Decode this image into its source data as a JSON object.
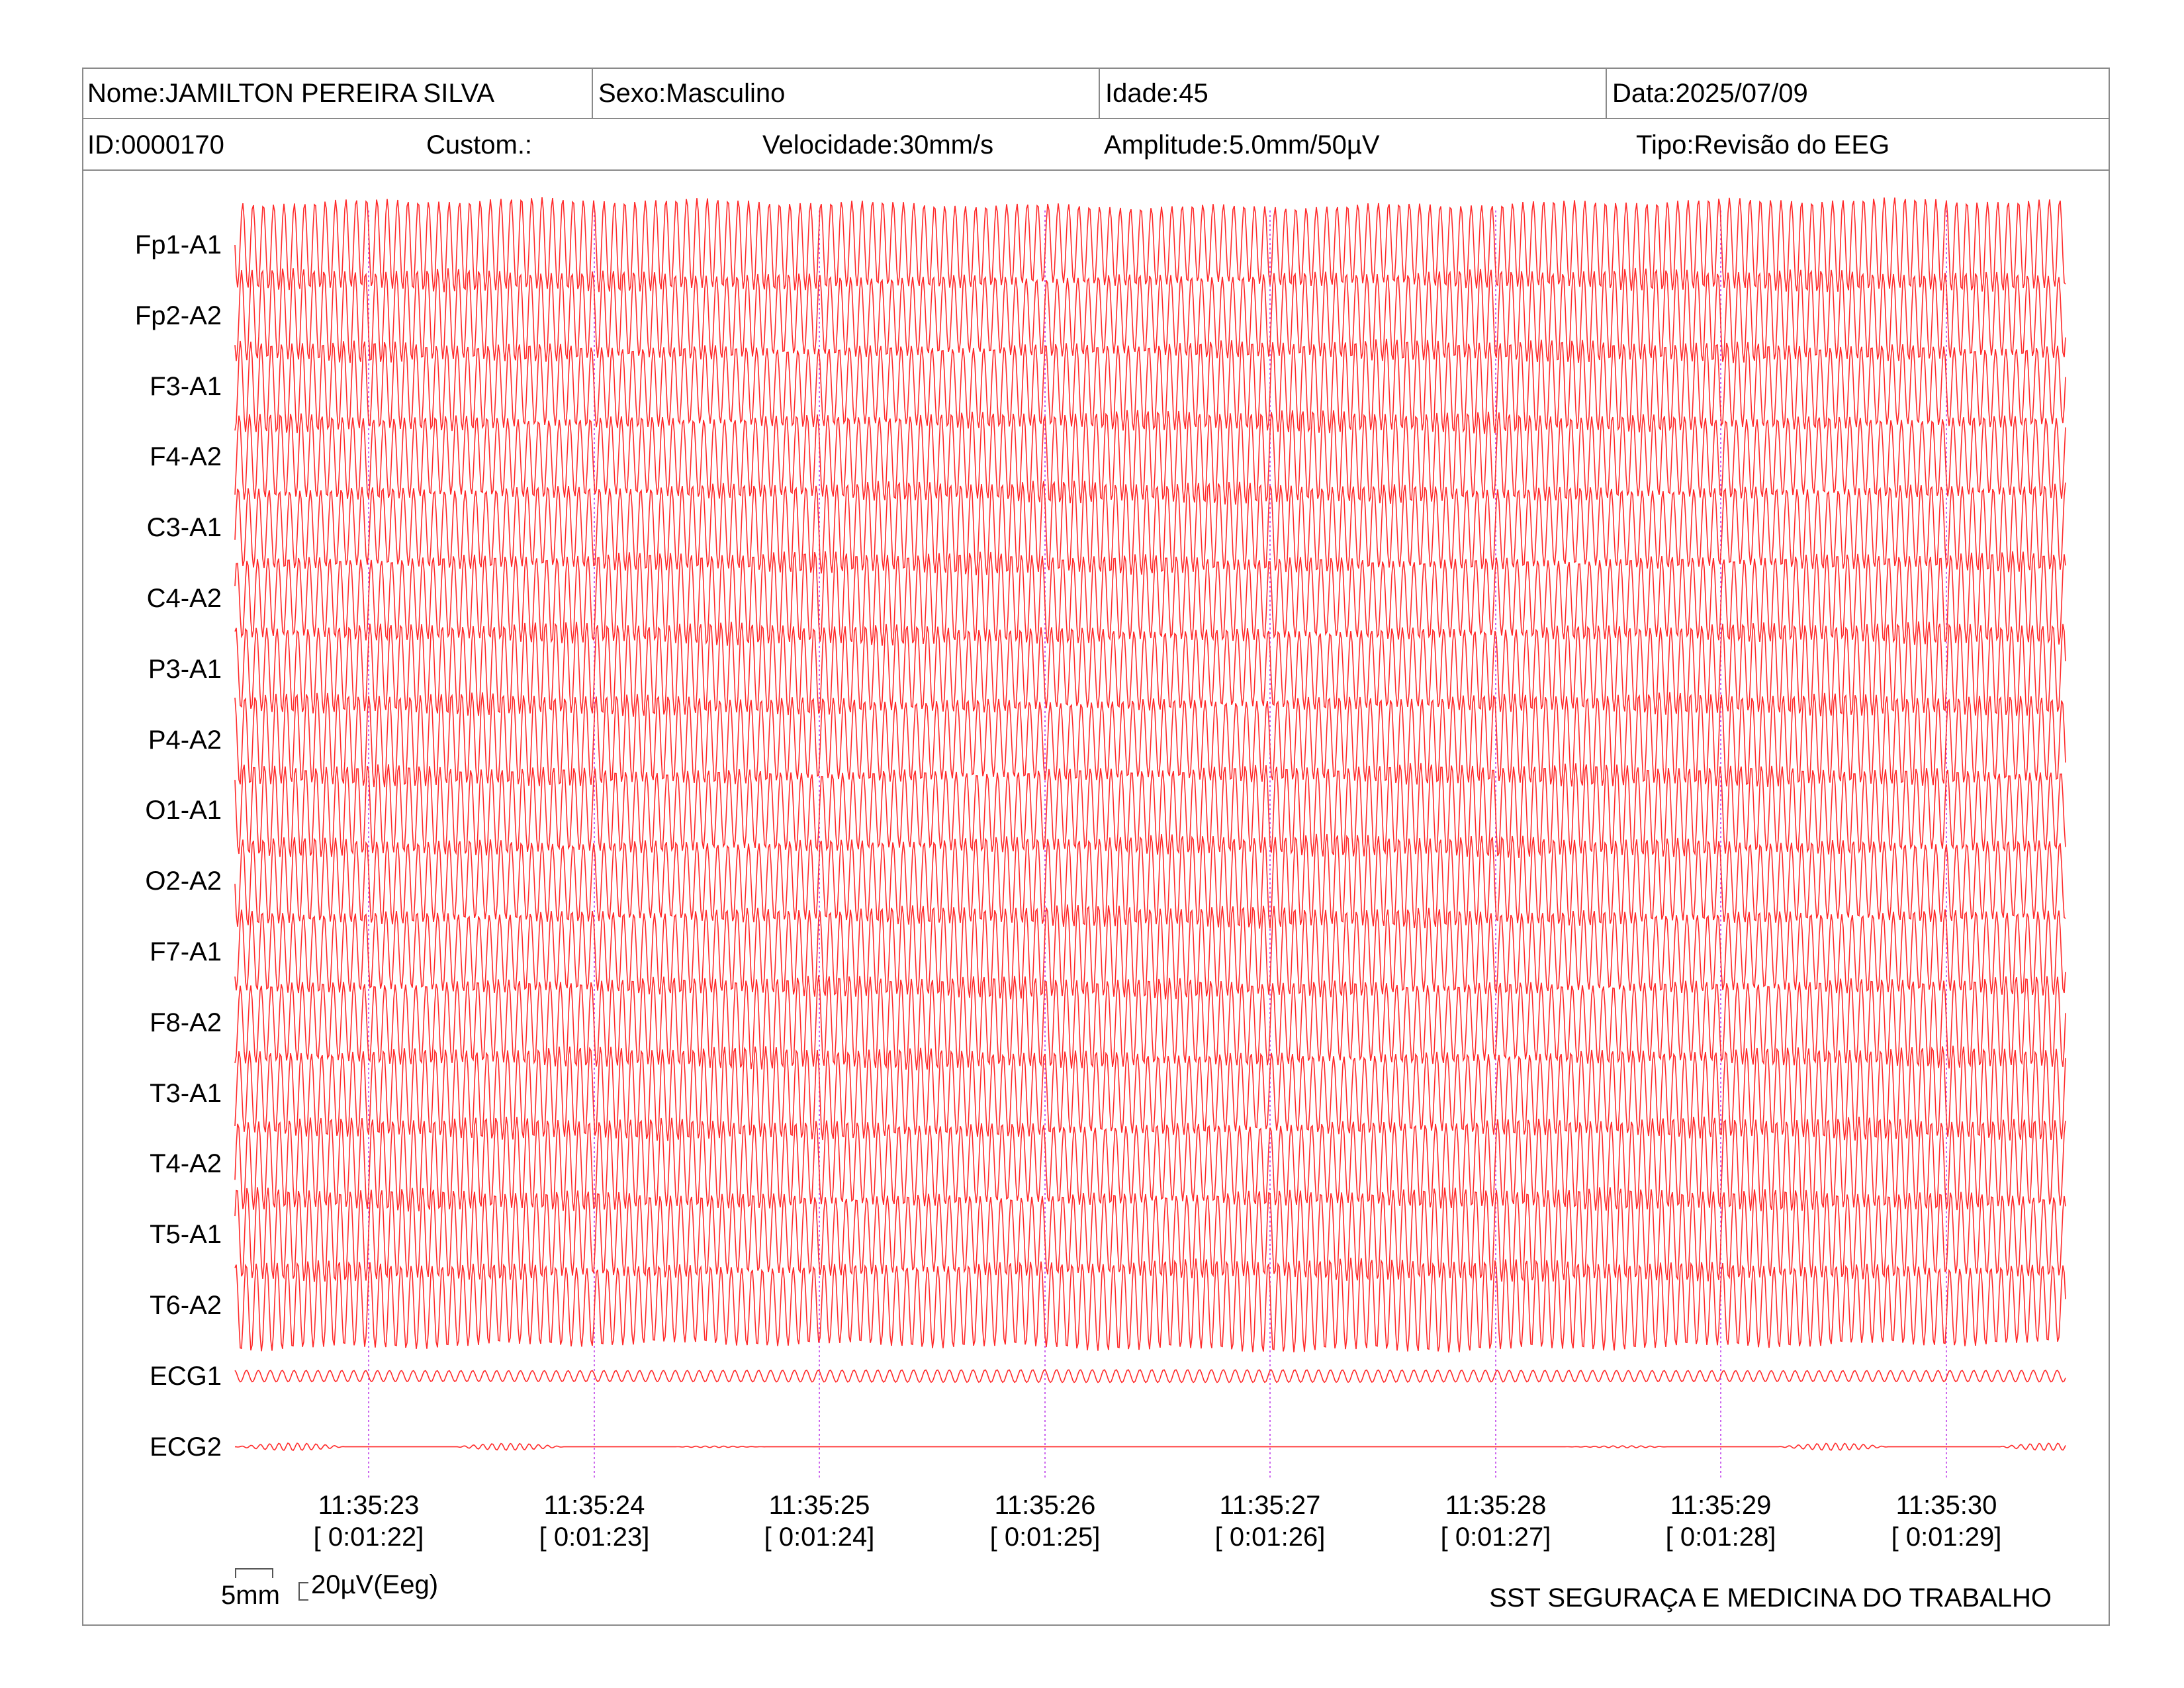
{
  "header": {
    "row1": {
      "nome": "Nome:JAMILTON PEREIRA SILVA",
      "sexo": "Sexo:Masculino",
      "idade": "Idade:45",
      "data": "Data:2025/07/09"
    },
    "row2": {
      "id": "ID:0000170",
      "custom": "Custom.:",
      "velocidade": "Velocidade:30mm/s",
      "amplitude": "Amplitude:5.0mm/50µV",
      "tipo": "Tipo:Revisão do EEG"
    }
  },
  "channels": [
    "Fp1-A1",
    "Fp2-A2",
    "F3-A1",
    "F4-A2",
    "C3-A1",
    "C4-A2",
    "P3-A1",
    "P4-A2",
    "O1-A1",
    "O2-A2",
    "F7-A1",
    "F8-A2",
    "T3-A1",
    "T4-A2",
    "T5-A1",
    "T6-A2",
    "ECG1",
    "ECG2"
  ],
  "time_marks": [
    {
      "clock": "11:35:23",
      "elapsed": "[ 0:01:22]"
    },
    {
      "clock": "11:35:24",
      "elapsed": "[ 0:01:23]"
    },
    {
      "clock": "11:35:25",
      "elapsed": "[ 0:01:24]"
    },
    {
      "clock": "11:35:26",
      "elapsed": "[ 0:01:25]"
    },
    {
      "clock": "11:35:27",
      "elapsed": "[ 0:01:26]"
    },
    {
      "clock": "11:35:28",
      "elapsed": "[ 0:01:27]"
    },
    {
      "clock": "11:35:29",
      "elapsed": "[ 0:01:28]"
    },
    {
      "clock": "11:35:30",
      "elapsed": "[ 0:01:29]"
    }
  ],
  "scale": {
    "time_label": "5mm",
    "amp_label": "20µV(Eeg)"
  },
  "footer": "SST SEGURAÇA E MEDICINA DO TRABALHO",
  "colors": {
    "trace": "#ff2a2a",
    "marker": "#cc66ee",
    "border": "#8a8a8a"
  }
}
